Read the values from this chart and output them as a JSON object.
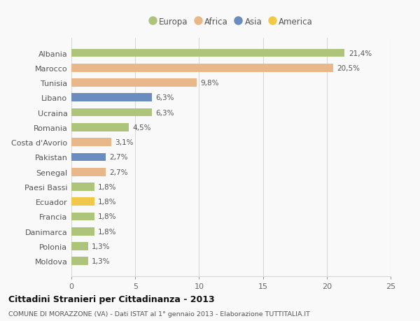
{
  "countries": [
    "Albania",
    "Marocco",
    "Tunisia",
    "Libano",
    "Ucraina",
    "Romania",
    "Costa d'Avorio",
    "Pakistan",
    "Senegal",
    "Paesi Bassi",
    "Ecuador",
    "Francia",
    "Danimarca",
    "Polonia",
    "Moldova"
  ],
  "values": [
    21.4,
    20.5,
    9.8,
    6.3,
    6.3,
    4.5,
    3.1,
    2.7,
    2.7,
    1.8,
    1.8,
    1.8,
    1.8,
    1.3,
    1.3
  ],
  "labels": [
    "21,4%",
    "20,5%",
    "9,8%",
    "6,3%",
    "6,3%",
    "4,5%",
    "3,1%",
    "2,7%",
    "2,7%",
    "1,8%",
    "1,8%",
    "1,8%",
    "1,8%",
    "1,3%",
    "1,3%"
  ],
  "colors": [
    "#adc47a",
    "#e8b88a",
    "#e8b88a",
    "#6b8cbf",
    "#adc47a",
    "#adc47a",
    "#e8b88a",
    "#6b8cbf",
    "#e8b88a",
    "#adc47a",
    "#f0c84a",
    "#adc47a",
    "#adc47a",
    "#adc47a",
    "#adc47a"
  ],
  "legend": [
    {
      "label": "Europa",
      "color": "#adc47a"
    },
    {
      "label": "Africa",
      "color": "#e8b88a"
    },
    {
      "label": "Asia",
      "color": "#6b8cbf"
    },
    {
      "label": "America",
      "color": "#f0c84a"
    }
  ],
  "xlim": [
    0,
    25
  ],
  "xticks": [
    0,
    5,
    10,
    15,
    20,
    25
  ],
  "title": "Cittadini Stranieri per Cittadinanza - 2013",
  "subtitle": "COMUNE DI MORAZZONE (VA) - Dati ISTAT al 1° gennaio 2013 - Elaborazione TUTTITALIA.IT",
  "background_color": "#f9f9f9",
  "grid_color": "#d8d8d8",
  "bar_height": 0.55
}
